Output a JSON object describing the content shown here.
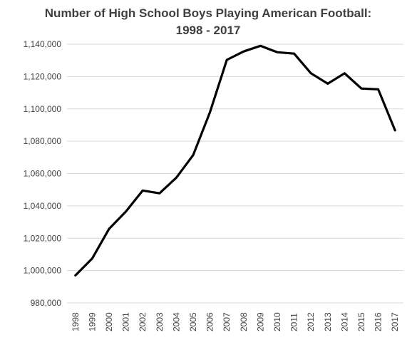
{
  "chart_data": {
    "type": "line",
    "title_lines": [
      "Number of High School Boys Playing American Football:",
      "1998 - 2017"
    ],
    "xlabel": "",
    "ylabel": "",
    "ylim": [
      980000,
      1140000
    ],
    "y_ticks": [
      980000,
      1000000,
      1020000,
      1040000,
      1060000,
      1080000,
      1100000,
      1120000,
      1140000
    ],
    "y_tick_labels": [
      "980,000",
      "1,000,000",
      "1,020,000",
      "1,040,000",
      "1,060,000",
      "1,080,000",
      "1,100,000",
      "1,120,000",
      "1,140,000"
    ],
    "categories": [
      "1998",
      "1999",
      "2000",
      "2001",
      "2002",
      "2003",
      "2004",
      "2005",
      "2006",
      "2007",
      "2008",
      "2009",
      "2010",
      "2011",
      "2012",
      "2013",
      "2014",
      "2015",
      "2016",
      "2017"
    ],
    "series": [
      {
        "values": [
          997000,
          1007500,
          1025800,
          1036500,
          1049500,
          1047800,
          1057500,
          1071400,
          1098000,
          1130300,
          1135500,
          1139000,
          1135000,
          1134200,
          1122000,
          1115600,
          1122000,
          1112600,
          1112100,
          1086700
        ],
        "color": "#000000"
      }
    ],
    "grid": true,
    "legend": "none"
  }
}
